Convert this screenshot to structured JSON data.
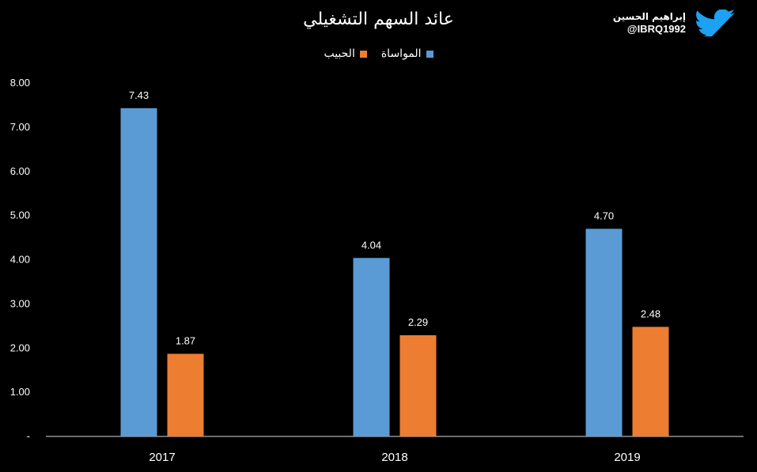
{
  "brand": {
    "name": "إبراهيم الحسين",
    "handle": "@IBRQ1992",
    "icon": "twitter-bird-icon",
    "icon_color": "#1DA1F2"
  },
  "chart_data": {
    "type": "bar",
    "title": "عائد السهم التشغيلي",
    "categories": [
      "2017",
      "2018",
      "2019"
    ],
    "series": [
      {
        "name": "المواساة",
        "values": [
          7.43,
          4.04,
          4.7
        ],
        "labels": [
          "7.43",
          "4.04",
          "4.70"
        ],
        "color": "#5B9BD5"
      },
      {
        "name": "الحبيب",
        "values": [
          1.87,
          2.29,
          2.48
        ],
        "labels": [
          "1.87",
          "2.29",
          "2.48"
        ],
        "color": "#ED7D31"
      }
    ],
    "ylim": [
      0,
      8
    ],
    "yticks": [
      0,
      1,
      2,
      3,
      4,
      5,
      6,
      7,
      8
    ],
    "ytick_labels": [
      "-",
      "1.00",
      "2.00",
      "3.00",
      "4.00",
      "5.00",
      "6.00",
      "7.00",
      "8.00"
    ],
    "xlabel": "",
    "ylabel": "",
    "legend_position": "top-center",
    "grid": false,
    "background": "#000000"
  }
}
